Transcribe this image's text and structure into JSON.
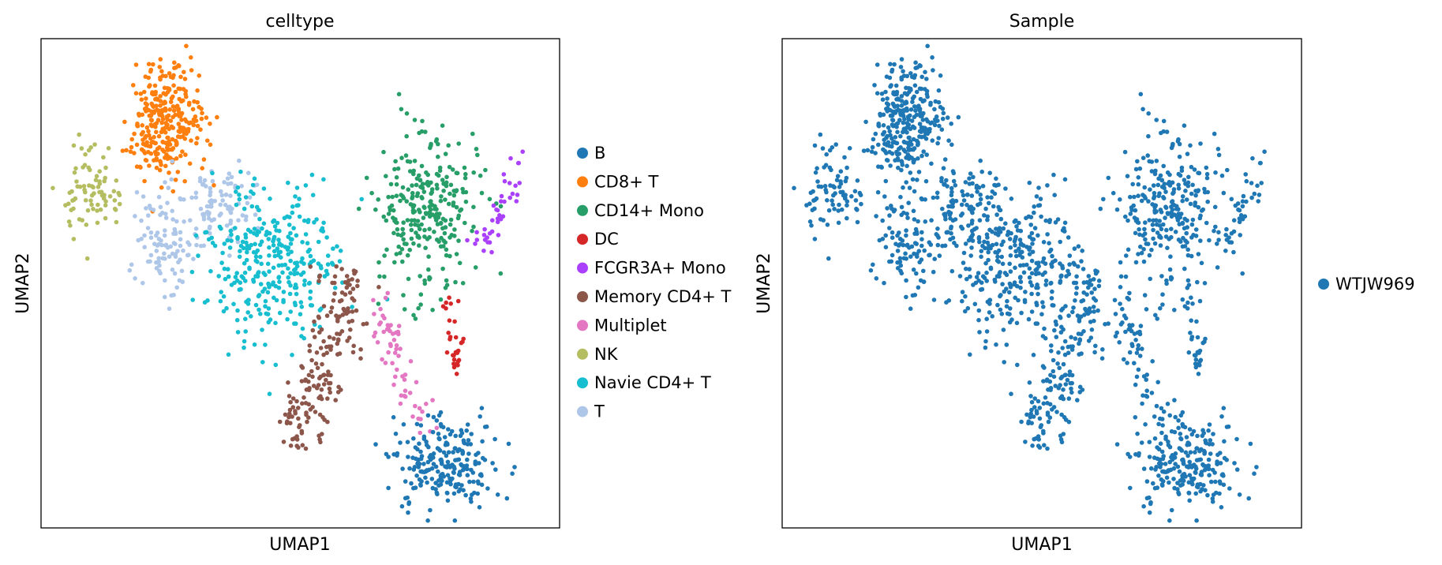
{
  "chart_data": [
    {
      "type": "scatter",
      "title": "celltype",
      "xlabel": "UMAP1",
      "ylabel": "UMAP2",
      "xlim": [
        0,
        100
      ],
      "ylim": [
        0,
        100
      ],
      "grid": false,
      "legend_placement": "right",
      "legend": [
        {
          "label": "B",
          "color": "#1f77b4"
        },
        {
          "label": "CD8+ T",
          "color": "#ff7f0e"
        },
        {
          "label": "CD14+ Mono",
          "color": "#279e68"
        },
        {
          "label": "DC",
          "color": "#d62728"
        },
        {
          "label": "FCGR3A+ Mono",
          "color": "#aa40fc"
        },
        {
          "label": "Memory CD4+ T",
          "color": "#8c564b"
        },
        {
          "label": "Multiplet",
          "color": "#e377c2"
        },
        {
          "label": "NK",
          "color": "#b5bd61"
        },
        {
          "label": "Navie CD4+ T",
          "color": "#17becf"
        },
        {
          "label": "T",
          "color": "#aec7e8"
        }
      ],
      "clusters": [
        {
          "label": "CD8+ T",
          "shape": "blob",
          "center": [
            23.9,
            83.4
          ],
          "spread": [
            3.6,
            5.7
          ],
          "count": 300
        },
        {
          "label": "NK",
          "shape": "blob",
          "center": [
            9.1,
            68.2
          ],
          "spread": [
            3.2,
            4.5
          ],
          "count": 80
        },
        {
          "label": "T",
          "shape": "blob",
          "center": [
            23.9,
            58.4
          ],
          "spread": [
            3.2,
            5.0
          ],
          "count": 100
        },
        {
          "label": "T",
          "shape": "blob",
          "center": [
            34.0,
            66.0
          ],
          "spread": [
            3.5,
            4.5
          ],
          "count": 90
        },
        {
          "label": "Navie CD4+ T",
          "shape": "blob",
          "center": [
            44.7,
            54.1
          ],
          "spread": [
            6.5,
            8.5
          ],
          "count": 320
        },
        {
          "label": "Memory CD4+ T",
          "shape": "line",
          "from": [
            59.9,
            53.1
          ],
          "to": [
            49.2,
            16.3
          ],
          "width": 2.6,
          "count": 180
        },
        {
          "label": "Multiplet",
          "shape": "line",
          "from": [
            63.5,
            47.3
          ],
          "to": [
            75.0,
            19.0
          ],
          "width": 1.5,
          "count": 60
        },
        {
          "label": "CD14+ Mono",
          "shape": "blob",
          "center": [
            74.5,
            64.5
          ],
          "spread": [
            4.8,
            8.5
          ],
          "count": 280
        },
        {
          "label": "FCGR3A+ Mono",
          "shape": "line",
          "from": [
            93.8,
            76.7
          ],
          "to": [
            84.0,
            56.0
          ],
          "width": 1.5,
          "count": 40
        },
        {
          "label": "DC",
          "shape": "line",
          "from": [
            78.6,
            47.3
          ],
          "to": [
            80.4,
            31.2
          ],
          "width": 1.0,
          "count": 30
        },
        {
          "label": "B",
          "shape": "blob",
          "center": [
            78.0,
            13.0
          ],
          "spread": [
            4.8,
            4.5
          ],
          "count": 230
        }
      ]
    },
    {
      "type": "scatter",
      "title": "Sample",
      "xlabel": "UMAP1",
      "ylabel": "UMAP2",
      "xlim": [
        0,
        100
      ],
      "ylim": [
        0,
        100
      ],
      "grid": false,
      "legend_placement": "right",
      "legend": [
        {
          "label": "WTJW969",
          "color": "#1f77b4"
        }
      ]
    }
  ]
}
